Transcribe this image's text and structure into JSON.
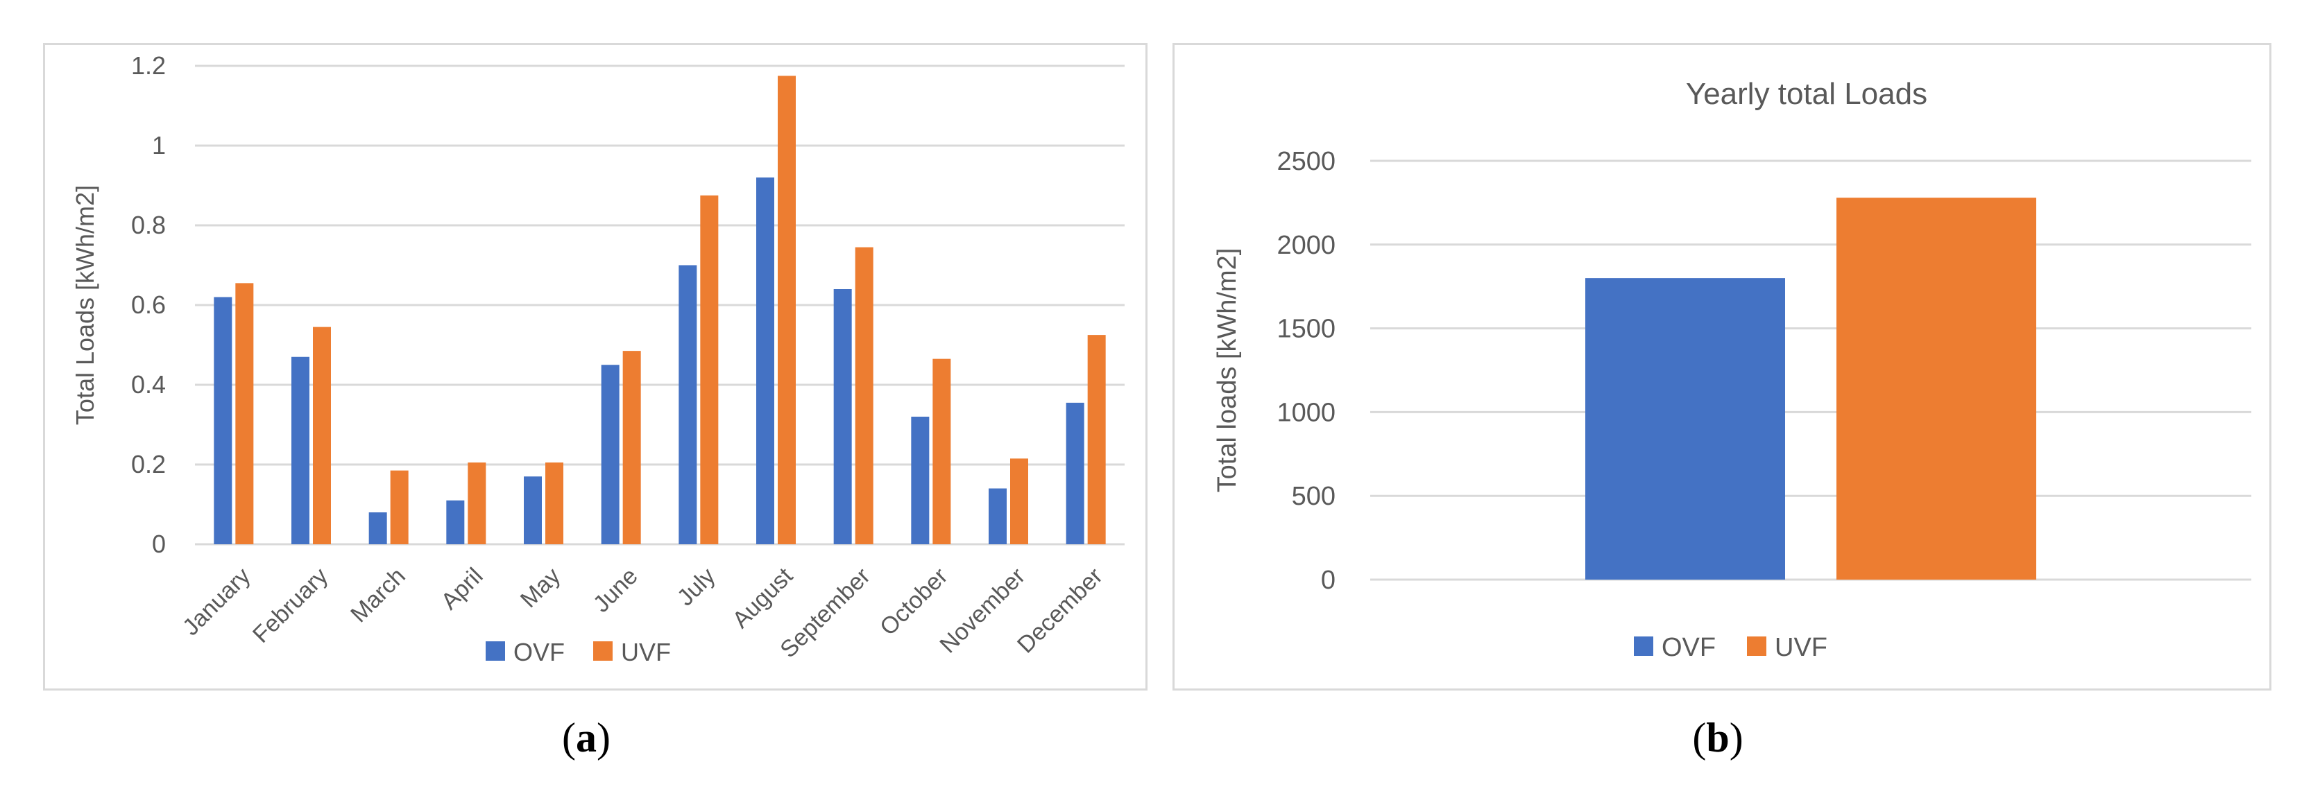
{
  "colors": {
    "ovf": "#4472C4",
    "uvf": "#ED7D31",
    "grid": "#d9d9d9",
    "text": "#595959"
  },
  "chart_data": [
    {
      "type": "bar",
      "title": "",
      "xlabel": "",
      "ylabel": "Total Loads [kWh/m2]",
      "categories": [
        "January",
        "February",
        "March",
        "April",
        "May",
        "June",
        "July",
        "August",
        "September",
        "October",
        "November",
        "December"
      ],
      "series": [
        {
          "name": "OVF",
          "values": [
            0.62,
            0.47,
            0.08,
            0.11,
            0.17,
            0.45,
            0.7,
            0.92,
            0.64,
            0.32,
            0.14,
            0.355
          ]
        },
        {
          "name": "UVF",
          "values": [
            0.655,
            0.545,
            0.185,
            0.205,
            0.205,
            0.485,
            0.875,
            1.175,
            0.745,
            0.465,
            0.215,
            0.525
          ]
        }
      ],
      "ylim": [
        0,
        1.2
      ],
      "yticks": [
        "0",
        "0.2",
        "0.4",
        "0.6",
        "0.8",
        "1",
        "1.2"
      ],
      "grid": true,
      "legend": "bottom",
      "caption": {
        "open": "(",
        "letter": "a",
        "close": ")"
      }
    },
    {
      "type": "bar",
      "title": "Yearly total Loads",
      "xlabel": "",
      "ylabel": "Total loads [kWh/m2]",
      "categories": [
        ""
      ],
      "series": [
        {
          "name": "OVF",
          "values": [
            1800
          ]
        },
        {
          "name": "UVF",
          "values": [
            2280
          ]
        }
      ],
      "ylim": [
        0,
        2500
      ],
      "yticks": [
        "0",
        "500",
        "1000",
        "1500",
        "2000",
        "2500"
      ],
      "grid": true,
      "legend": "bottom",
      "caption": {
        "open": "(",
        "letter": "b",
        "close": ")"
      }
    }
  ]
}
